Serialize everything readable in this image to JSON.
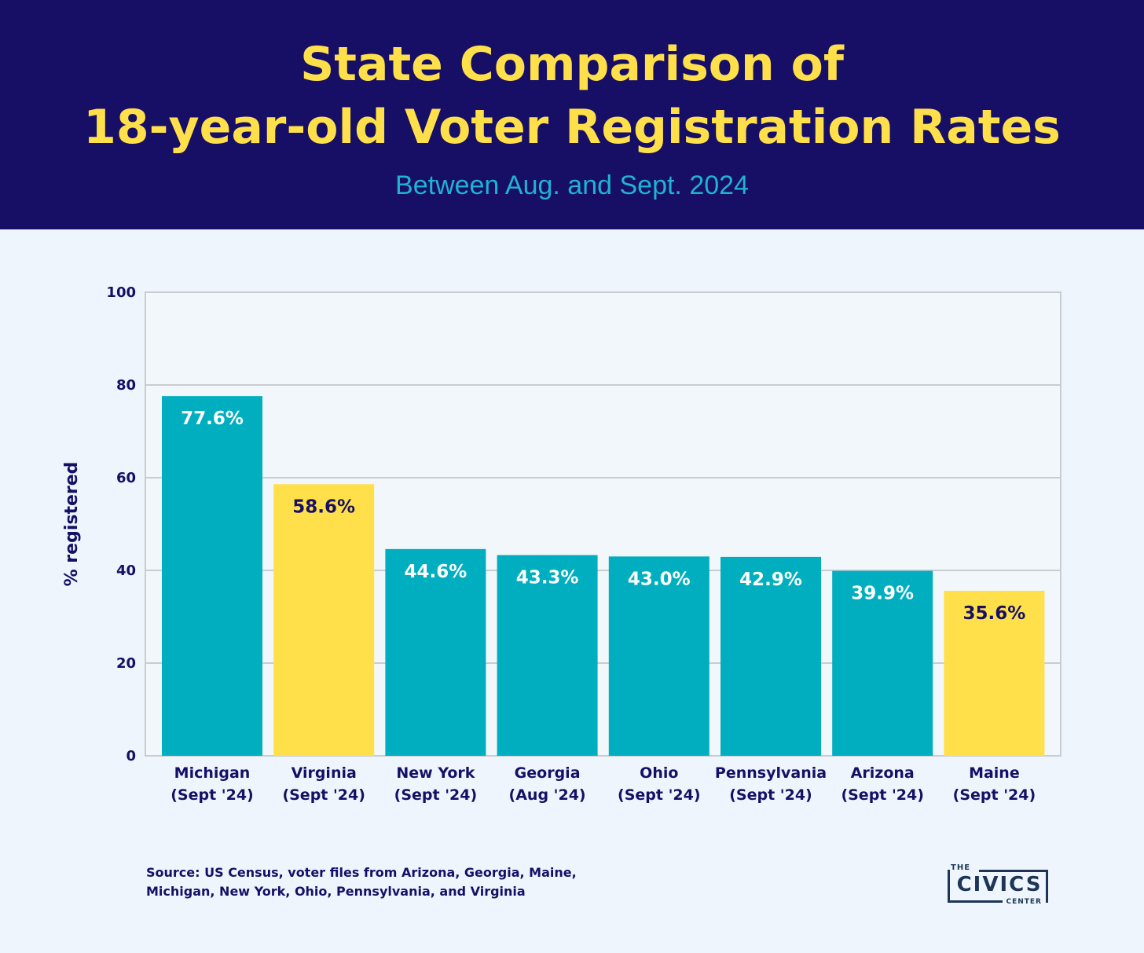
{
  "header": {
    "title_line1": "State Comparison of",
    "title_line2": "18-year-old Voter Registration Rates",
    "subtitle": "Between Aug. and Sept. 2024"
  },
  "chart_data": {
    "type": "bar",
    "categories": [
      [
        "Michigan",
        "(Sept '24)"
      ],
      [
        "Virginia",
        "(Sept '24)"
      ],
      [
        "New York",
        "(Sept '24)"
      ],
      [
        "Georgia",
        "(Aug '24)"
      ],
      [
        "Ohio",
        "(Sept '24)"
      ],
      [
        "Pennsylvania",
        "(Sept '24)"
      ],
      [
        "Arizona",
        "(Sept '24)"
      ],
      [
        "Maine",
        "(Sept '24)"
      ]
    ],
    "values": [
      77.6,
      58.6,
      44.6,
      43.3,
      43.0,
      42.9,
      39.9,
      35.6
    ],
    "value_labels": [
      "77.6%",
      "58.6%",
      "44.6%",
      "43.3%",
      "43.0%",
      "42.9%",
      "39.9%",
      "35.6%"
    ],
    "bar_colors": [
      "#00afbf",
      "#ffe04a",
      "#00afbf",
      "#00afbf",
      "#00afbf",
      "#00afbf",
      "#00afbf",
      "#ffe04a"
    ],
    "label_colors": [
      "#ffffff",
      "#170f66",
      "#ffffff",
      "#ffffff",
      "#ffffff",
      "#ffffff",
      "#ffffff",
      "#170f66"
    ],
    "ylabel": "% registered",
    "ylim": [
      0,
      100
    ],
    "yticks": [
      0,
      20,
      40,
      60,
      80,
      100
    ],
    "grid": true
  },
  "footer": {
    "source_line1": "Source: US Census, voter files from Arizona, Georgia, Maine,",
    "source_line2": "Michigan, New York, Ohio, Pennsylvania, and Virginia",
    "logo_the": "THE",
    "logo_civics": "CIVICS",
    "logo_center": "CENTER"
  }
}
